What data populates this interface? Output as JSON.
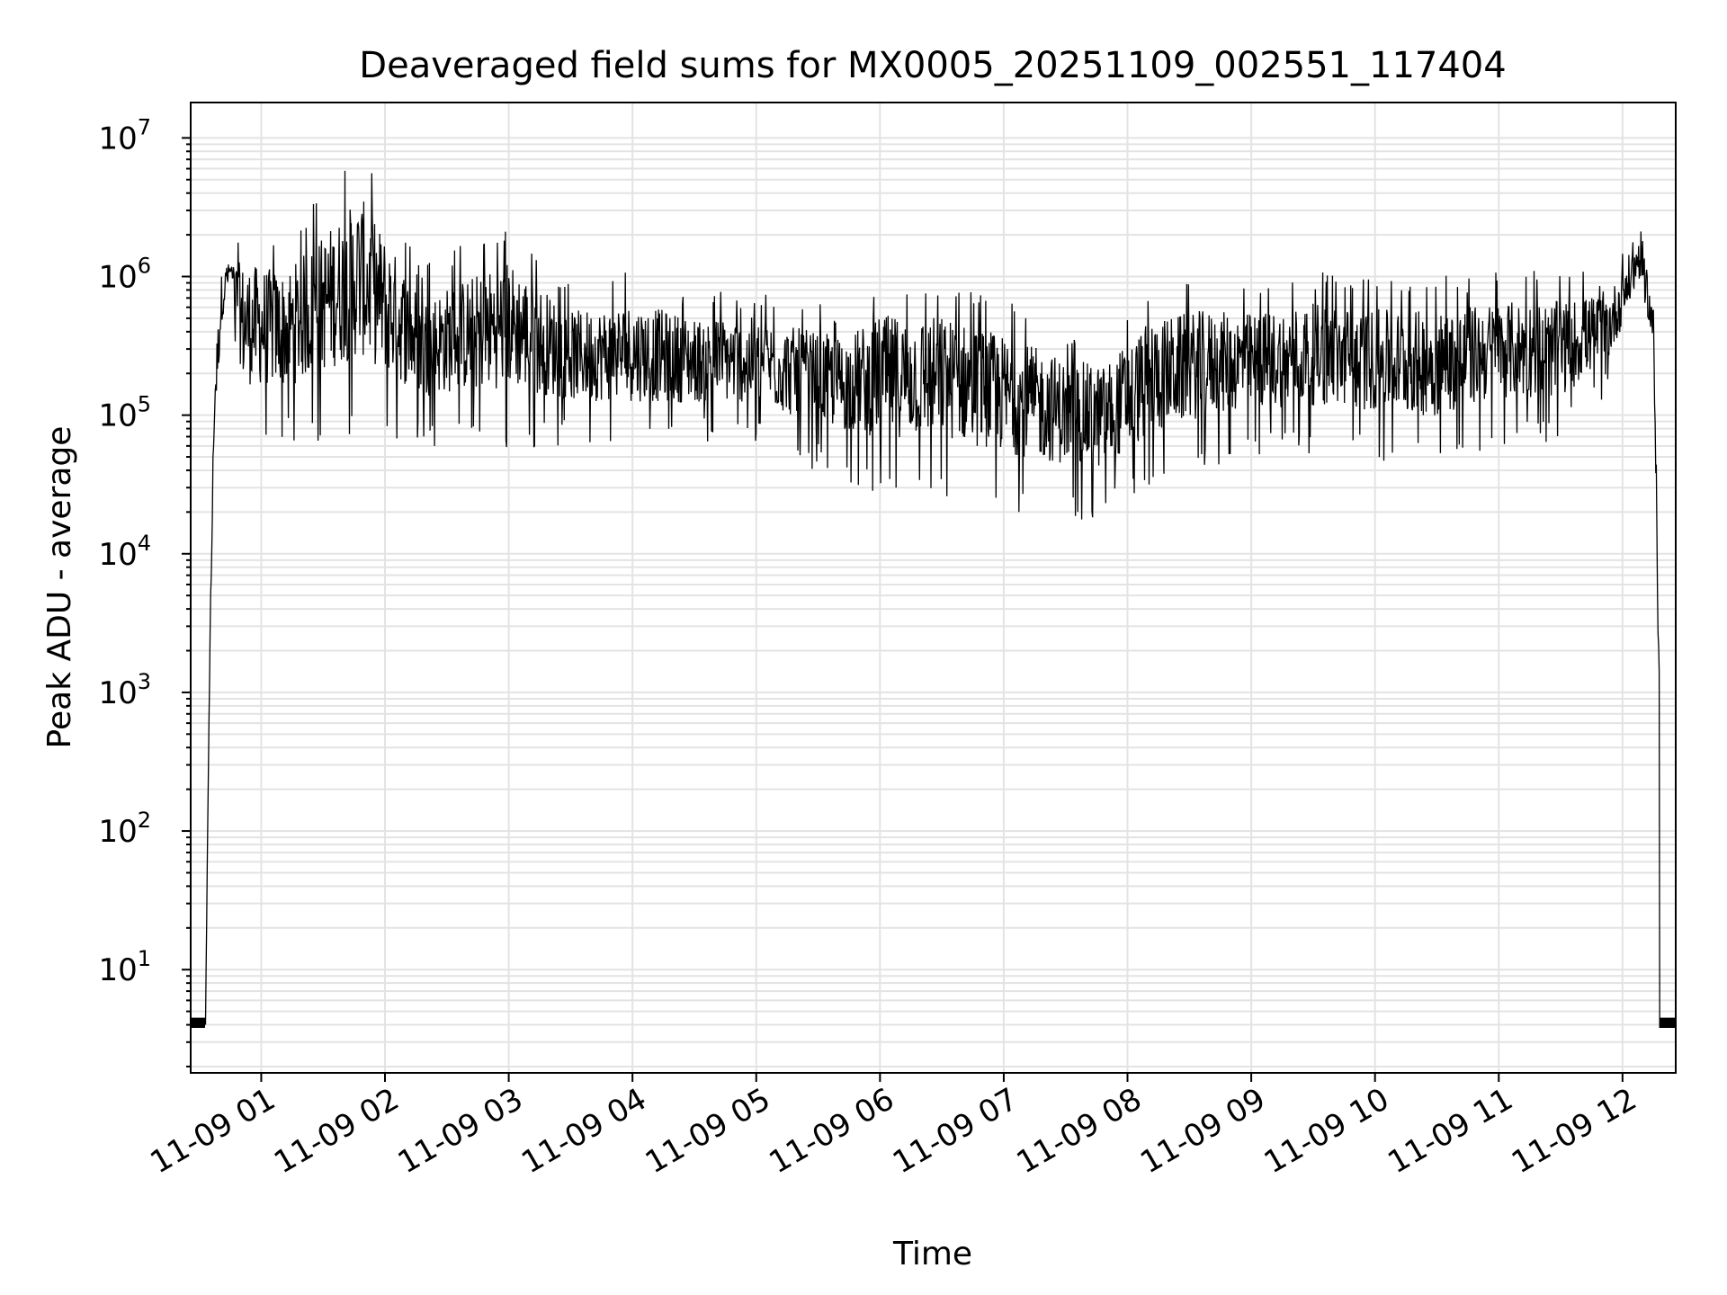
{
  "chart_data": {
    "type": "line",
    "title": "Deaveraged field sums for MX0005_20251109_002551_117404",
    "xlabel": "Time",
    "ylabel": "Peak ADU - average",
    "yscale": "log",
    "ylim": [
      1.8,
      18000000
    ],
    "xlim_hours": [
      0.43,
      12.43
    ],
    "grid": true,
    "x_tick_labels": [
      "11-09 01",
      "11-09 02",
      "11-09 03",
      "11-09 04",
      "11-09 05",
      "11-09 06",
      "11-09 07",
      "11-09 08",
      "11-09 09",
      "11-09 10",
      "11-09 11",
      "11-09 12"
    ],
    "x_tick_hours": [
      1,
      2,
      3,
      4,
      5,
      6,
      7,
      8,
      9,
      10,
      11,
      12
    ],
    "y_ticks": [
      {
        "base": "10",
        "exp": "1",
        "value": 10
      },
      {
        "base": "10",
        "exp": "2",
        "value": 100
      },
      {
        "base": "10",
        "exp": "3",
        "value": 1000
      },
      {
        "base": "10",
        "exp": "4",
        "value": 10000
      },
      {
        "base": "10",
        "exp": "5",
        "value": 100000
      },
      {
        "base": "10",
        "exp": "6",
        "value": 1000000
      },
      {
        "base": "10",
        "exp": "7",
        "value": 10000000
      }
    ],
    "series": [
      {
        "name": "field sums",
        "color": "#000000",
        "envelope": [
          {
            "t": 0.55,
            "low": 4,
            "high": 4
          },
          {
            "t": 0.58,
            "low": 700,
            "high": 1500
          },
          {
            "t": 0.62,
            "low": 40000,
            "high": 280000
          },
          {
            "t": 0.68,
            "low": 300000,
            "high": 1400000
          },
          {
            "t": 0.75,
            "low": 900000,
            "high": 1400000
          },
          {
            "t": 0.85,
            "low": 60000,
            "high": 2400000
          },
          {
            "t": 1.2,
            "low": 60000,
            "high": 2000000
          },
          {
            "t": 1.8,
            "low": 70000,
            "high": 9000000
          },
          {
            "t": 2.3,
            "low": 60000,
            "high": 1200000
          },
          {
            "t": 3.0,
            "low": 55000,
            "high": 2600000
          },
          {
            "t": 3.5,
            "low": 60000,
            "high": 900000
          },
          {
            "t": 4.0,
            "low": 55000,
            "high": 1100000
          },
          {
            "t": 4.5,
            "low": 60000,
            "high": 800000
          },
          {
            "t": 5.0,
            "low": 60000,
            "high": 800000
          },
          {
            "t": 5.3,
            "low": 45000,
            "high": 700000
          },
          {
            "t": 5.7,
            "low": 35000,
            "high": 600000
          },
          {
            "t": 6.0,
            "low": 25000,
            "high": 1000000
          },
          {
            "t": 6.5,
            "low": 25000,
            "high": 1000000
          },
          {
            "t": 7.0,
            "low": 20000,
            "high": 700000
          },
          {
            "t": 7.5,
            "low": 18000,
            "high": 450000
          },
          {
            "t": 7.8,
            "low": 17000,
            "high": 400000
          },
          {
            "t": 8.2,
            "low": 28000,
            "high": 900000
          },
          {
            "t": 8.6,
            "low": 40000,
            "high": 1000000
          },
          {
            "t": 9.0,
            "low": 50000,
            "high": 900000
          },
          {
            "t": 9.5,
            "low": 50000,
            "high": 1100000
          },
          {
            "t": 10.0,
            "low": 45000,
            "high": 1000000
          },
          {
            "t": 10.5,
            "low": 40000,
            "high": 1000000
          },
          {
            "t": 11.0,
            "low": 60000,
            "high": 1100000
          },
          {
            "t": 11.5,
            "low": 60000,
            "high": 1100000
          },
          {
            "t": 11.9,
            "low": 150000,
            "high": 1100000
          },
          {
            "t": 12.15,
            "low": 700000,
            "high": 2700000
          },
          {
            "t": 12.25,
            "low": 200000,
            "high": 700000
          },
          {
            "t": 12.3,
            "low": 100,
            "high": 20000
          },
          {
            "t": 12.33,
            "low": 4,
            "high": 4
          },
          {
            "t": 12.43,
            "low": 4,
            "high": 4
          }
        ]
      }
    ]
  }
}
